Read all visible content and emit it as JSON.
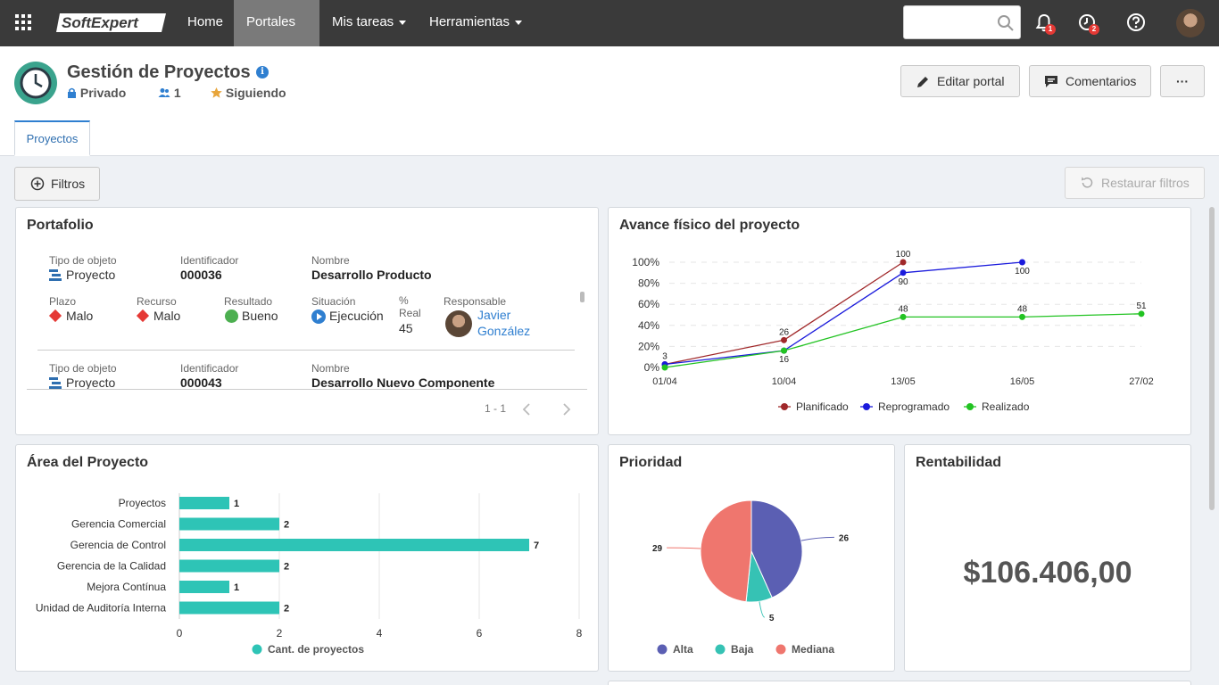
{
  "nav": {
    "logo_text": "SoftExpert",
    "items": [
      {
        "label": "Home"
      },
      {
        "label": "Portales"
      },
      {
        "label": "Mis tareas"
      },
      {
        "label": "Herramientas"
      }
    ],
    "notifications_count": "1",
    "tasks_count": "2"
  },
  "header": {
    "title": "Gestión de Proyectos",
    "privacy": "Privado",
    "members": "1",
    "following": "Siguiendo",
    "edit_button": "Editar portal",
    "comments_button": "Comentarios",
    "more_button": "···",
    "tab": "Proyectos"
  },
  "toolbar": {
    "filters": "Filtros",
    "restore": "Restaurar filtros"
  },
  "portafolio": {
    "title": "Portafolio",
    "labels": {
      "tipo": "Tipo de objeto",
      "id": "Identificador",
      "nombre": "Nombre",
      "plazo": "Plazo",
      "recurso": "Recurso",
      "resultado": "Resultado",
      "situacion": "Situación",
      "pct": "%",
      "real": "Real",
      "responsable": "Responsable"
    },
    "items": [
      {
        "tipo": "Proyecto",
        "id": "000036",
        "nombre": "Desarrollo Producto",
        "plazo": "Malo",
        "recurso": "Malo",
        "resultado": "Bueno",
        "situacion": "Ejecución",
        "real": "45",
        "responsable_first": "Javier",
        "responsable_last": "González"
      },
      {
        "tipo": "Proyecto",
        "id": "000043",
        "nombre": "Desarrollo Nuevo Componente"
      }
    ],
    "pagination": "1 - 1"
  },
  "avance": {
    "title": "Avance físico del proyecto"
  },
  "area": {
    "title": "Área del Proyecto"
  },
  "prioridad": {
    "title": "Prioridad"
  },
  "rentabilidad": {
    "title": "Rentabilidad",
    "value": "$106.406,00"
  },
  "chart_data": [
    {
      "type": "line",
      "title": "Avance físico del proyecto",
      "x": [
        "01/04",
        "10/04",
        "13/05",
        "16/05",
        "27/02"
      ],
      "ylim": [
        0,
        100
      ],
      "yticks": [
        "0%",
        "20%",
        "40%",
        "60%",
        "80%",
        "100%"
      ],
      "series": [
        {
          "name": "Planificado",
          "color": "#a0282a",
          "values": [
            3,
            26,
            100,
            null,
            null
          ]
        },
        {
          "name": "Reprogramado",
          "color": "#1a1adc",
          "values": [
            3,
            16,
            90,
            100,
            null
          ]
        },
        {
          "name": "Realizado",
          "color": "#22c322",
          "values": [
            0,
            16,
            48,
            48,
            51
          ]
        }
      ],
      "data_labels": [
        {
          "series": "Planificado",
          "x": "01/04",
          "text": "3"
        },
        {
          "series": "Planificado",
          "x": "10/04",
          "text": "26"
        },
        {
          "series": "Planificado",
          "x": "13/05",
          "text": "100"
        },
        {
          "series": "Reprogramado",
          "x": "10/04",
          "text": "16"
        },
        {
          "series": "Reprogramado",
          "x": "13/05",
          "text": "90"
        },
        {
          "series": "Reprogramado",
          "x": "16/05",
          "text": "100"
        },
        {
          "series": "Realizado",
          "x": "13/05",
          "text": "48"
        },
        {
          "series": "Realizado",
          "x": "16/05",
          "text": "48"
        },
        {
          "series": "Realizado",
          "x": "27/02",
          "text": "51"
        }
      ],
      "legend": "bottom",
      "grid": true
    },
    {
      "type": "bar",
      "orientation": "horizontal",
      "title": "Área del Proyecto",
      "categories": [
        "Proyectos",
        "Gerencia Comercial",
        "Gerencia de Control",
        "Gerencia de la Calidad",
        "Mejora Contínua",
        "Unidad de Auditoría Interna"
      ],
      "series": [
        {
          "name": "Cant. de proyectos",
          "color": "#2ec4b6",
          "values": [
            1,
            2,
            7,
            2,
            1,
            2
          ]
        }
      ],
      "xlim": [
        0,
        8
      ],
      "xticks": [
        "0",
        "2",
        "4",
        "6",
        "8"
      ],
      "legend": "bottom",
      "grid": true
    },
    {
      "type": "pie",
      "title": "Prioridad",
      "slices": [
        {
          "name": "Alta",
          "value": 26,
          "color": "#5b5fb3"
        },
        {
          "name": "Baja",
          "value": 5,
          "color": "#36c2b4"
        },
        {
          "name": "Mediana",
          "value": 29,
          "color": "#ef766e"
        }
      ],
      "legend": "bottom"
    }
  ]
}
